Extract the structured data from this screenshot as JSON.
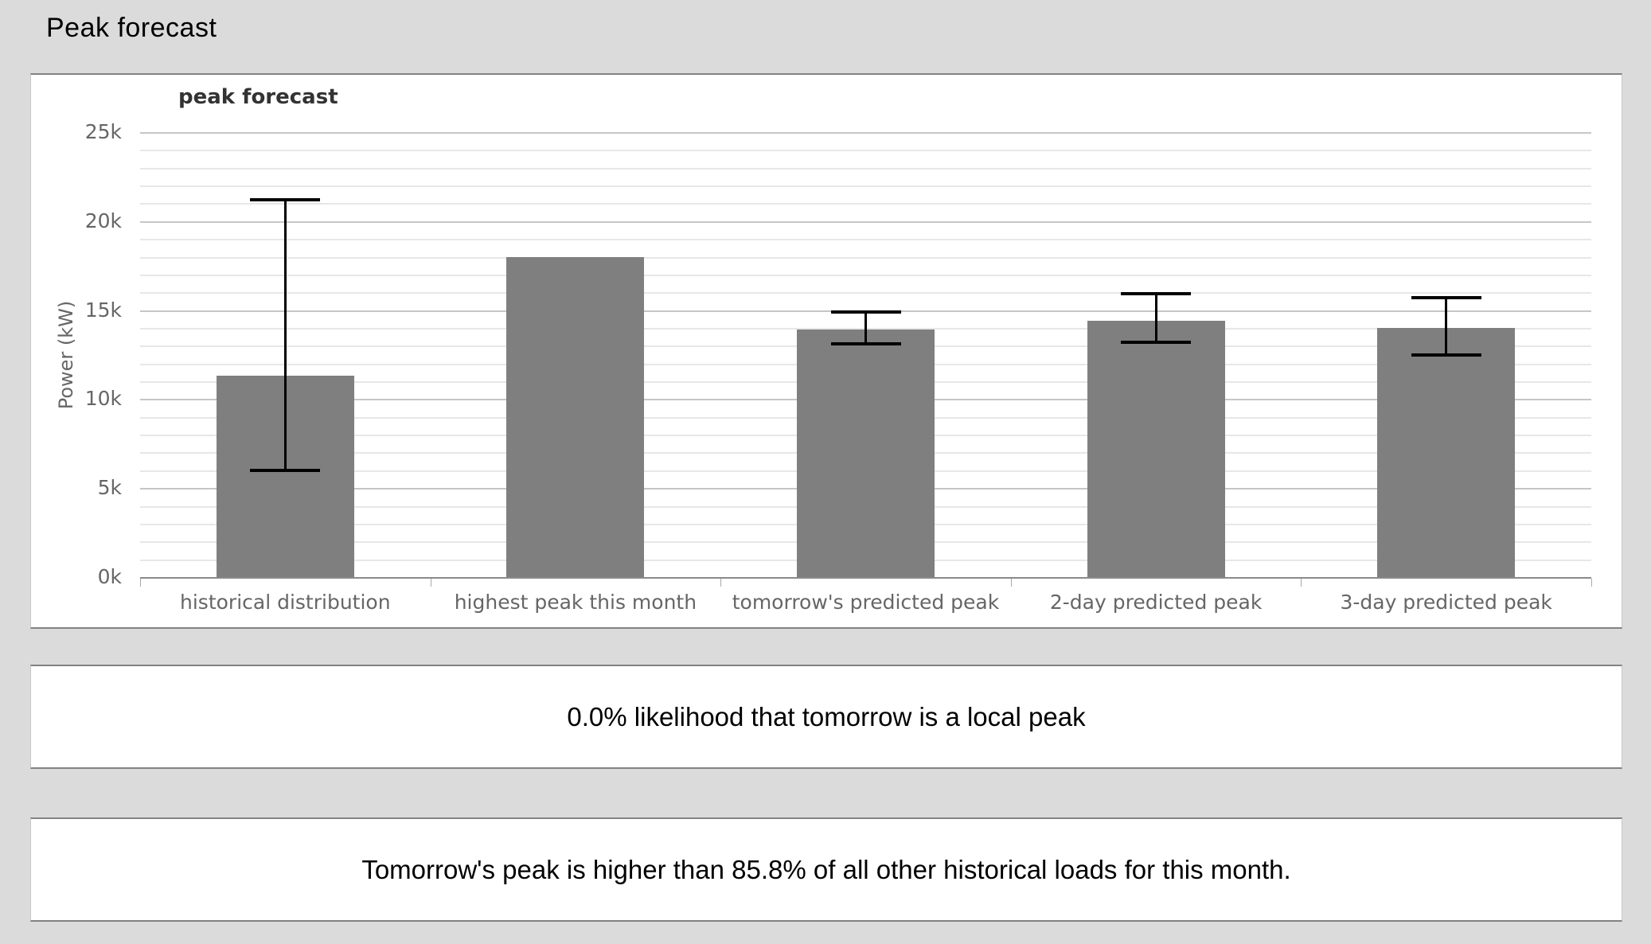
{
  "page": {
    "title": "Peak forecast"
  },
  "colors": {
    "page_bg": "#dbdbdb",
    "bar": "#7f7f7f",
    "error_bar": "#000000",
    "grid_minor": "#e7e7e7",
    "grid_major": "#c6c6c6",
    "axis_line": "#8a8a8a",
    "axis_text": "#666666",
    "legend_text": "#333333"
  },
  "chart_data": {
    "type": "bar",
    "title": "",
    "legend": "peak forecast",
    "legend_position": "top-left",
    "xlabel": "",
    "ylabel": "Power (kW)",
    "ylim": [
      0,
      25000
    ],
    "ytick_interval": 5000,
    "minor_tick_interval": 1000,
    "grid": "on",
    "ytick_labels": [
      "0k",
      "5k",
      "10k",
      "15k",
      "20k",
      "25k"
    ],
    "categories": [
      "historical distribution",
      "highest peak this month",
      "tomorrow's predicted peak",
      "2-day predicted peak",
      "3-day predicted peak"
    ],
    "series": [
      {
        "name": "peak forecast",
        "values": [
          11300,
          18000,
          13900,
          14400,
          14000
        ],
        "error_low": [
          6000,
          null,
          13100,
          13200,
          12500
        ],
        "error_high": [
          21200,
          null,
          14900,
          15900,
          15700
        ]
      }
    ]
  },
  "panels": {
    "likelihood": "0.0% likelihood that tomorrow is a local peak",
    "percentile": "Tomorrow's peak is higher than 85.8% of all other historical loads for this month."
  }
}
